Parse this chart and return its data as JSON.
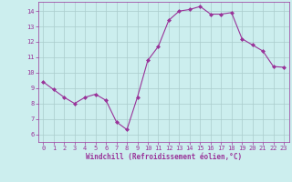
{
  "x": [
    0,
    1,
    2,
    3,
    4,
    5,
    6,
    7,
    8,
    9,
    10,
    11,
    12,
    13,
    14,
    15,
    16,
    17,
    18,
    19,
    20,
    21,
    22,
    23
  ],
  "y": [
    9.4,
    8.9,
    8.4,
    8.0,
    8.4,
    8.6,
    8.2,
    6.8,
    6.3,
    8.4,
    10.8,
    11.7,
    13.4,
    14.0,
    14.1,
    14.3,
    13.8,
    13.8,
    13.9,
    12.2,
    11.8,
    11.4,
    10.4,
    10.35
  ],
  "line_color": "#993399",
  "marker": "D",
  "marker_size": 2.0,
  "bg_color": "#cceeee",
  "grid_color": "#aacccc",
  "xlabel": "Windchill (Refroidissement éolien,°C)",
  "xlabel_color": "#993399",
  "tick_color": "#993399",
  "axis_color": "#993399",
  "ylim": [
    5.5,
    14.6
  ],
  "xlim": [
    -0.5,
    23.5
  ],
  "yticks": [
    6,
    7,
    8,
    9,
    10,
    11,
    12,
    13,
    14
  ],
  "xticks": [
    0,
    1,
    2,
    3,
    4,
    5,
    6,
    7,
    8,
    9,
    10,
    11,
    12,
    13,
    14,
    15,
    16,
    17,
    18,
    19,
    20,
    21,
    22,
    23
  ],
  "tick_fontsize": 5.0,
  "xlabel_fontsize": 5.5
}
